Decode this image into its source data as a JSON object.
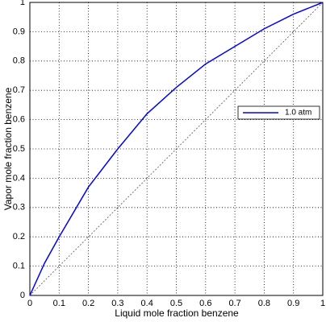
{
  "chart_data": {
    "type": "line",
    "xlabel": "Liquid mole fraction benzene",
    "ylabel": "Vapor mole fraction benzene",
    "x": [
      0,
      0.05,
      0.1,
      0.2,
      0.3,
      0.4,
      0.5,
      0.6,
      0.7,
      0.8,
      0.9,
      1
    ],
    "series": [
      {
        "name": "1.0 atm",
        "color": "#0000ff",
        "values": [
          0,
          0.11,
          0.2,
          0.37,
          0.5,
          0.62,
          0.71,
          0.79,
          0.85,
          0.91,
          0.96,
          1
        ]
      }
    ],
    "xlim": [
      0,
      1
    ],
    "ylim": [
      0,
      1
    ],
    "xticks": [
      0,
      0.1,
      0.2,
      0.3,
      0.4,
      0.5,
      0.6,
      0.7,
      0.8,
      0.9,
      1
    ],
    "yticks": [
      0,
      0.1,
      0.2,
      0.3,
      0.4,
      0.5,
      0.6,
      0.7,
      0.8,
      0.9,
      1
    ],
    "grid": true,
    "legend_position": "right"
  }
}
